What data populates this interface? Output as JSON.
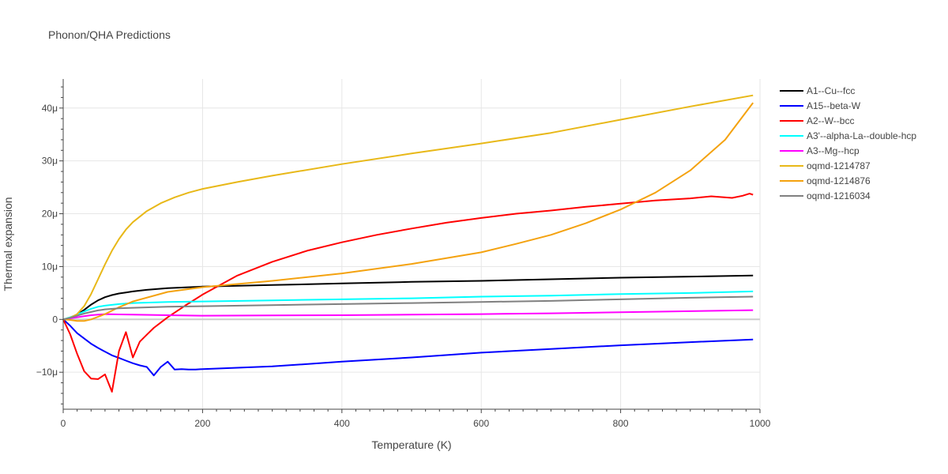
{
  "chart_data": {
    "type": "line",
    "title": "Phonon/QHA Predictions",
    "xlabel": "Temperature (K)",
    "ylabel": "Thermal expansion",
    "xlim": [
      0,
      1000
    ],
    "ylim": [
      -17,
      45.5
    ],
    "y_unit_suffix": "μ",
    "x_ticks": [
      0,
      200,
      400,
      600,
      800,
      1000
    ],
    "y_ticks": [
      -10,
      0,
      10,
      20,
      30,
      40
    ],
    "y_tick_labels": [
      "−10μ",
      "0",
      "10μ",
      "20μ",
      "30μ",
      "40μ"
    ],
    "grid": true,
    "legend_position": "right",
    "series": [
      {
        "name": "A1--Cu--fcc",
        "color": "#000000",
        "x": [
          0,
          10,
          20,
          30,
          40,
          50,
          60,
          70,
          80,
          90,
          100,
          120,
          150,
          200,
          300,
          400,
          500,
          600,
          700,
          800,
          900,
          990
        ],
        "y": [
          0,
          0.3,
          0.9,
          1.8,
          2.8,
          3.6,
          4.2,
          4.6,
          4.9,
          5.1,
          5.3,
          5.6,
          5.9,
          6.2,
          6.5,
          6.8,
          7.1,
          7.3,
          7.6,
          7.9,
          8.1,
          8.3
        ]
      },
      {
        "name": "A15--beta-W",
        "color": "#0000ff",
        "x": [
          0,
          10,
          20,
          30,
          40,
          50,
          60,
          70,
          80,
          90,
          100,
          110,
          120,
          130,
          140,
          150,
          160,
          170,
          180,
          190,
          200,
          300,
          400,
          500,
          600,
          700,
          800,
          900,
          990
        ],
        "y": [
          0,
          -1.2,
          -2.6,
          -3.6,
          -4.6,
          -5.4,
          -6.1,
          -6.8,
          -7.3,
          -7.8,
          -8.3,
          -8.7,
          -9.0,
          -10.6,
          -9.0,
          -8.0,
          -9.5,
          -9.4,
          -9.5,
          -9.5,
          -9.4,
          -8.9,
          -8.0,
          -7.2,
          -6.3,
          -5.6,
          -4.9,
          -4.3,
          -3.8
        ]
      },
      {
        "name": "A2--W--bcc",
        "color": "#ff0000",
        "x": [
          0,
          10,
          20,
          30,
          40,
          50,
          60,
          70,
          80,
          90,
          100,
          110,
          120,
          130,
          140,
          150,
          175,
          200,
          250,
          300,
          350,
          400,
          450,
          500,
          550,
          600,
          650,
          700,
          750,
          800,
          850,
          900,
          930,
          960,
          975,
          985,
          990
        ],
        "y": [
          0,
          -2.8,
          -6.5,
          -9.8,
          -11.2,
          -11.3,
          -10.4,
          -13.7,
          -6.0,
          -2.4,
          -7.2,
          -4.2,
          -2.9,
          -1.6,
          -0.6,
          0.4,
          2.6,
          4.7,
          8.3,
          10.9,
          13.0,
          14.6,
          16.0,
          17.2,
          18.3,
          19.2,
          20.0,
          20.6,
          21.3,
          21.9,
          22.5,
          22.9,
          23.3,
          23.0,
          23.4,
          23.8,
          23.6
        ]
      },
      {
        "name": "A3'--alpha-La--double-hcp",
        "color": "#00ffff",
        "x": [
          0,
          10,
          20,
          30,
          40,
          50,
          60,
          80,
          100,
          150,
          200,
          300,
          400,
          500,
          600,
          700,
          800,
          900,
          990
        ],
        "y": [
          0,
          0.4,
          0.9,
          1.5,
          2.0,
          2.4,
          2.6,
          2.9,
          3.1,
          3.3,
          3.4,
          3.6,
          3.8,
          4.0,
          4.3,
          4.5,
          4.8,
          5.0,
          5.3
        ]
      },
      {
        "name": "A3--Mg--hcp",
        "color": "#ff00ff",
        "x": [
          0,
          10,
          20,
          30,
          40,
          50,
          60,
          80,
          100,
          150,
          200,
          300,
          400,
          500,
          600,
          700,
          800,
          900,
          990
        ],
        "y": [
          0,
          0.2,
          0.4,
          0.6,
          0.8,
          0.9,
          1.0,
          0.95,
          0.9,
          0.8,
          0.7,
          0.75,
          0.8,
          0.9,
          1.0,
          1.15,
          1.35,
          1.55,
          1.75
        ]
      },
      {
        "name": "oqmd-1214787",
        "color": "#e8b818",
        "x": [
          0,
          10,
          20,
          30,
          40,
          50,
          60,
          70,
          80,
          90,
          100,
          120,
          140,
          160,
          180,
          200,
          250,
          300,
          400,
          500,
          600,
          700,
          800,
          900,
          990
        ],
        "y": [
          0,
          0.3,
          1.0,
          2.5,
          4.8,
          7.6,
          10.4,
          13.0,
          15.2,
          17.0,
          18.4,
          20.5,
          22.0,
          23.1,
          24.0,
          24.7,
          26.0,
          27.2,
          29.4,
          31.4,
          33.3,
          35.3,
          37.8,
          40.3,
          42.4
        ]
      },
      {
        "name": "oqmd-1214876",
        "color": "#f4a20f",
        "x": [
          0,
          10,
          20,
          30,
          40,
          50,
          60,
          80,
          100,
          150,
          200,
          300,
          400,
          500,
          600,
          650,
          700,
          750,
          800,
          850,
          900,
          950,
          990
        ],
        "y": [
          0,
          -0.1,
          -0.3,
          -0.3,
          0.0,
          0.5,
          1.0,
          2.3,
          3.4,
          5.2,
          6.1,
          7.3,
          8.7,
          10.5,
          12.7,
          14.3,
          16.0,
          18.2,
          20.8,
          24.0,
          28.2,
          34.0,
          41.0
        ]
      },
      {
        "name": "oqmd-1216034",
        "color": "#808080",
        "x": [
          0,
          10,
          20,
          30,
          40,
          50,
          60,
          80,
          100,
          150,
          200,
          300,
          400,
          500,
          600,
          700,
          800,
          900,
          990
        ],
        "y": [
          0,
          0.3,
          0.7,
          1.1,
          1.4,
          1.7,
          1.9,
          2.1,
          2.2,
          2.4,
          2.5,
          2.7,
          2.9,
          3.1,
          3.3,
          3.5,
          3.8,
          4.1,
          4.3
        ]
      }
    ]
  }
}
